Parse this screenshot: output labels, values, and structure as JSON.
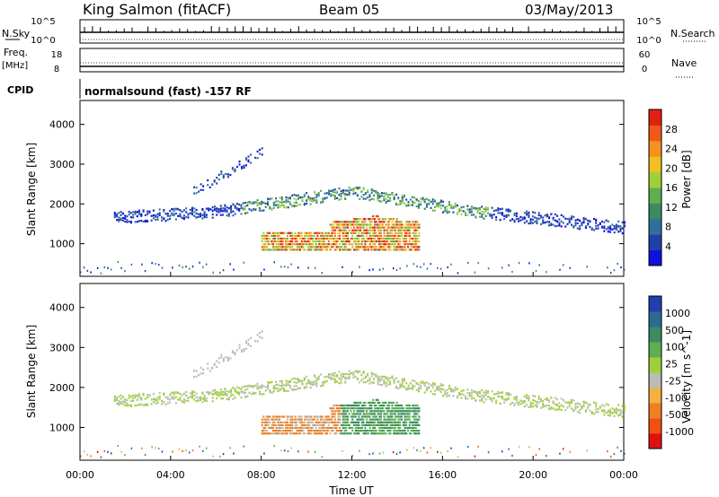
{
  "header": {
    "station": "King Salmon (fitACF)",
    "beam": "Beam 05",
    "date": "03/May/2013"
  },
  "strip_labels": {
    "nsky": "N.Sky",
    "nsky_ticks": [
      "10^5",
      "10^0"
    ],
    "nsearch": "N.Search",
    "nsearch_ticks": [
      "10^5",
      "10^0"
    ],
    "freq": "Freq.",
    "freq_unit": "[MHz]",
    "freq_ticks": [
      "18",
      "8"
    ],
    "nave": "Nave",
    "nave_ticks": [
      "60",
      "0"
    ],
    "cpid": "CPID",
    "cpid_text": "normalsound (fast) -157 RF"
  },
  "axes": {
    "ylabel": "Slant Range [km]",
    "xlabel": "Time UT",
    "y_ticks": [
      "1000",
      "2000",
      "3000",
      "4000"
    ],
    "x_ticks": [
      "00:00",
      "04:00",
      "08:00",
      "12:00",
      "16:00",
      "20:00",
      "00:00"
    ]
  },
  "power_colorbar": {
    "label": "Power [dB]",
    "ticks": [
      "4",
      "8",
      "12",
      "16",
      "20",
      "24",
      "28"
    ],
    "colors": [
      "#1010e0",
      "#2040a8",
      "#2f6fa0",
      "#3a8c60",
      "#5fae50",
      "#9ed03a",
      "#f0c020",
      "#f89020",
      "#f05a18",
      "#e02010"
    ]
  },
  "velocity_colorbar": {
    "label": "Velocity [m s^-1]",
    "ticks": [
      "1000",
      "500",
      "100",
      "25",
      "-25",
      "-100",
      "-500",
      "-1000"
    ],
    "colors": [
      "#2040b0",
      "#2e6a90",
      "#3a8c60",
      "#5fae50",
      "#9ed03a",
      "#bcbcb4",
      "#f5b040",
      "#f08020",
      "#f05010",
      "#e01010"
    ]
  },
  "chart_data": {
    "type": "heatmap",
    "title": "King Salmon (fitACF) Beam 05 03/May/2013",
    "xlabel": "Time UT",
    "ylabel": "Slant Range [km]",
    "xlim_hours": [
      0,
      24
    ],
    "ylim_km": [
      180,
      4600
    ],
    "grid": false,
    "bands": [
      {
        "name": "upper patch",
        "t": [
          5.0,
          8.0
        ],
        "r_start": [
          2200,
          3400
        ],
        "thick": 200,
        "power": "8-12 dB",
        "velocity": "~0"
      },
      {
        "name": "main band",
        "t": [
          1.5,
          24.0
        ],
        "r_center": [
          1650,
          1800,
          2300,
          1800,
          1400
        ],
        "t_knots": [
          1.5,
          6.0,
          12.0,
          17.5,
          24.0
        ],
        "power": "4-20 dB",
        "velocity": "-25 to 25"
      },
      {
        "name": "lower echo",
        "t": [
          8.0,
          15.0
        ],
        "r": [
          800,
          1700
        ],
        "power": "16-28 dB",
        "velocity": "-500 (before 12 UT) to 100 (after 12 UT)"
      }
    ]
  }
}
